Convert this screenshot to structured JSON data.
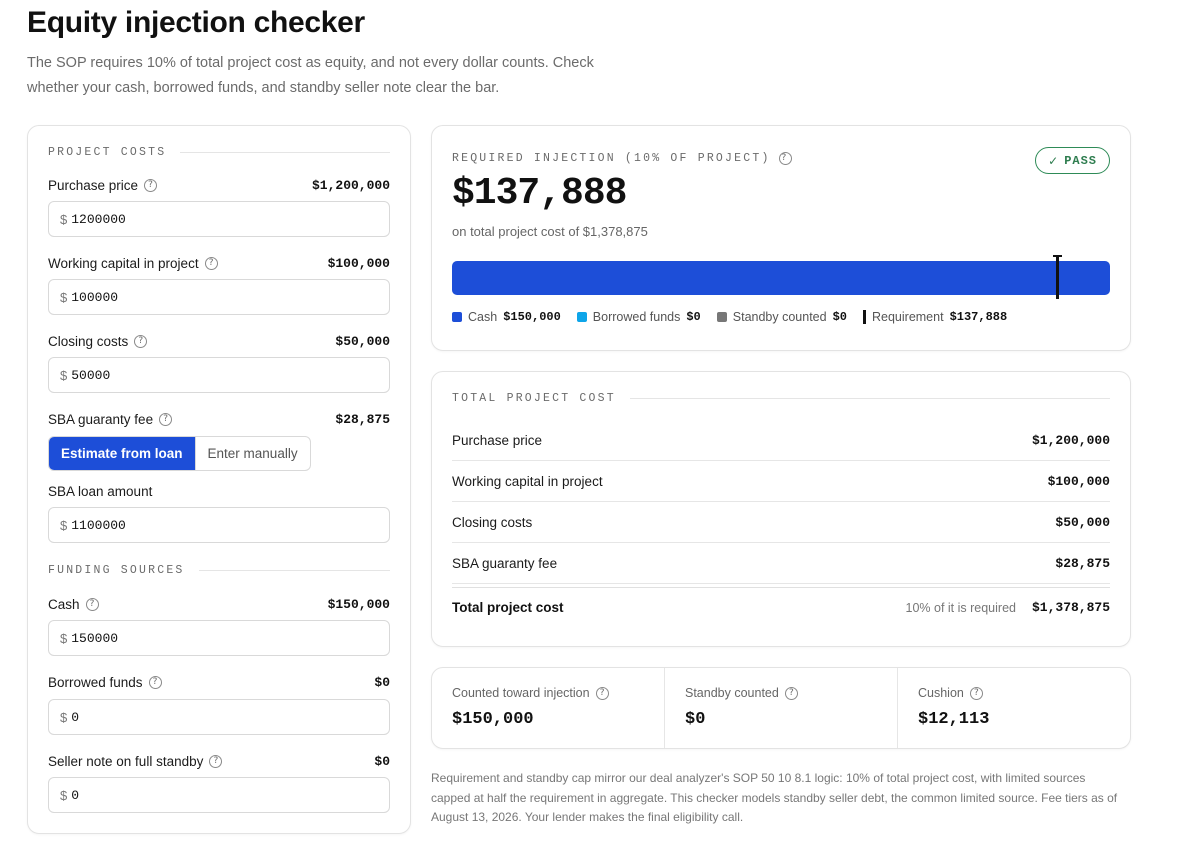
{
  "header": {
    "title": "Equity injection checker",
    "subtitle": "The SOP requires 10% of total project cost as equity, and not every dollar counts. Check whether your cash, borrowed funds, and standby seller note clear the bar."
  },
  "project_costs": {
    "section_label": "PROJECT COSTS",
    "purchase_price": {
      "label": "Purchase price",
      "display": "$1,200,000",
      "currency": "$",
      "input_value": "1200000"
    },
    "working_capital": {
      "label": "Working capital in project",
      "display": "$100,000",
      "currency": "$",
      "input_value": "100000"
    },
    "closing_costs": {
      "label": "Closing costs",
      "display": "$50,000",
      "currency": "$",
      "input_value": "50000"
    },
    "guaranty_fee": {
      "label": "SBA guaranty fee",
      "display": "$28,875",
      "mode_options": [
        "Estimate from loan",
        "Enter manually"
      ],
      "selected_mode": "Estimate from loan"
    },
    "loan_amount": {
      "label": "SBA loan amount",
      "currency": "$",
      "input_value": "1100000"
    }
  },
  "funding_sources": {
    "section_label": "FUNDING SOURCES",
    "cash": {
      "label": "Cash",
      "display": "$150,000",
      "currency": "$",
      "input_value": "150000"
    },
    "borrowed": {
      "label": "Borrowed funds",
      "display": "$0",
      "currency": "$",
      "input_value": "0"
    },
    "seller_note": {
      "label": "Seller note on full standby",
      "display": "$0",
      "currency": "$",
      "input_value": "0"
    }
  },
  "required": {
    "label": "REQUIRED INJECTION (10% OF PROJECT)",
    "status": "PASS",
    "status_glyph": "✓",
    "amount": "$137,888",
    "subtext": "on total project cost of $1,378,875",
    "bar": {
      "cash_fraction": 1.0,
      "requirement_fraction": 0.919
    },
    "legend": {
      "cash_label": "Cash",
      "cash_value": "$150,000",
      "borrowed_label": "Borrowed funds",
      "borrowed_value": "$0",
      "standby_label": "Standby counted",
      "standby_value": "$0",
      "requirement_label": "Requirement",
      "requirement_value": "$137,888"
    }
  },
  "total_cost": {
    "section_label": "TOTAL PROJECT COST",
    "rows": [
      {
        "label": "Purchase price",
        "amount": "$1,200,000"
      },
      {
        "label": "Working capital in project",
        "amount": "$100,000"
      },
      {
        "label": "Closing costs",
        "amount": "$50,000"
      },
      {
        "label": "SBA guaranty fee",
        "amount": "$28,875"
      }
    ],
    "total_label": "Total project cost",
    "total_note": "10% of it is required",
    "total_amount": "$1,378,875"
  },
  "stats": {
    "counted": {
      "label": "Counted toward injection",
      "value": "$150,000"
    },
    "standby": {
      "label": "Standby counted",
      "value": "$0"
    },
    "cushion": {
      "label": "Cushion",
      "value": "$12,113"
    }
  },
  "disclaimer": "Requirement and standby cap mirror our deal analyzer's SOP 50 10 8.1 logic: 10% of total project cost, with limited sources capped at half the requirement in aggregate. This checker models standby seller debt, the common limited source. Fee tiers as of August 13, 2026. Your lender makes the final eligibility call.",
  "colors": {
    "accent": "#1d4ed8",
    "borrowed": "#0ea5e9",
    "standby": "#777777",
    "pass": "#2e7d4f"
  },
  "icons": {
    "help": "help-circle-icon",
    "check": "check-icon"
  }
}
